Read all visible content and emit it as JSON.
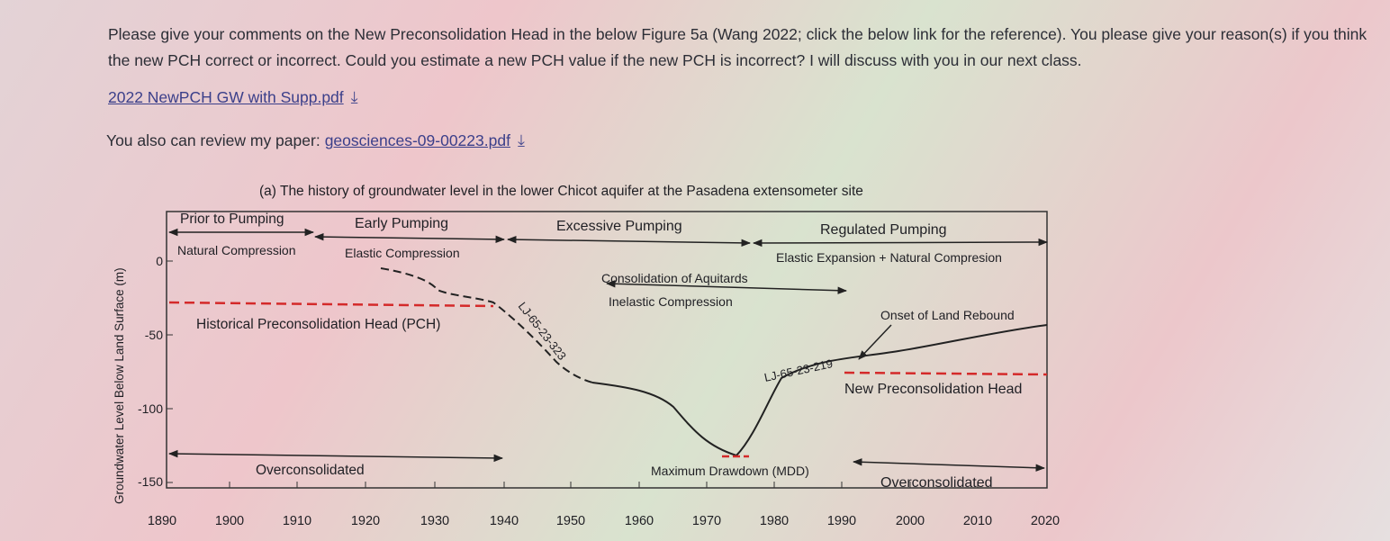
{
  "message": {
    "paragraph": "Please give your comments on the New Preconsolidation Head in the below Figure 5a (Wang 2022; click the below link for the reference). You please give your reason(s) if you think the new PCH correct or incorrect. Could you estimate a new PCH value if the new PCH is incorrect? I will discuss with you in our next class.",
    "attachment_1": {
      "label": "2022 NewPCH GW with Supp.pdf",
      "icon": "download-arrow-icon"
    },
    "review_prefix": "You also can review my paper:",
    "attachment_2": {
      "label": "geosciences-09-00223.pdf",
      "icon": "download-arrow-icon"
    },
    "colors": {
      "link": "#3b3f8a",
      "pch_line": "#d42a2a",
      "text": "#2c2e36"
    }
  },
  "figure": {
    "title": "(a) The history of groundwater level in the lower Chicot aquifer at the Pasadena extensometer site",
    "ylabel": "Groundwater Level Below Land Surface (m)",
    "y_ticks": [
      "0",
      "-50",
      "-100",
      "-150"
    ],
    "x_ticks": [
      "1890",
      "1900",
      "1910",
      "1920",
      "1930",
      "1940",
      "1950",
      "1960",
      "1970",
      "1980",
      "1990",
      "2000",
      "2010",
      "2020"
    ],
    "periods": {
      "prior": "Prior to Pumping",
      "early": "Early Pumping",
      "excessive": "Excessive Pumping",
      "regulated": "Regulated Pumping"
    },
    "annotations": {
      "natural_compression": "Natural Compression",
      "elastic_compression": "Elastic Compression",
      "elastic_expansion": "Elastic Expansion + Natural Compresion",
      "consolidation": "Consolidation of Aquitards",
      "inelastic": "Inelastic Compression",
      "historical_pch": "Historical Preconsolidation Head (PCH)",
      "onset": "Onset of Land Rebound",
      "new_pch": "New Preconsolidation Head",
      "well_1": "LJ-65-23-323",
      "well_2": "LJ-65-23-219",
      "mdd": "Maximum Drawdown (MDD)",
      "overconsolidated_left": "Overconsolidated",
      "overconsolidated_right": "Overconsolidated"
    }
  }
}
